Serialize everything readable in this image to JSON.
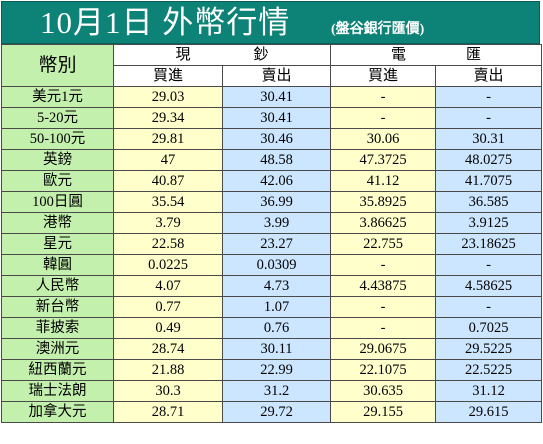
{
  "header": {
    "title": "10月1日 外幣行情",
    "subtitle": "(盤谷銀行匯價)"
  },
  "table": {
    "corner_label": "幣別",
    "cash_group": [
      "現",
      "鈔"
    ],
    "transfer_group": [
      "電",
      "匯"
    ],
    "sub_labels": {
      "cash_buy": "買進",
      "cash_sell": "賣出",
      "tt_buy": "買進",
      "tt_sell": "賣出"
    },
    "rows": [
      {
        "currency": "美元1元",
        "cash_buy": "29.03",
        "cash_sell": "30.41",
        "tt_buy": "-",
        "tt_sell": "-"
      },
      {
        "currency": "5-20元",
        "cash_buy": "29.34",
        "cash_sell": "30.41",
        "tt_buy": "-",
        "tt_sell": "-"
      },
      {
        "currency": "50-100元",
        "cash_buy": "29.81",
        "cash_sell": "30.46",
        "tt_buy": "30.06",
        "tt_sell": "30.31"
      },
      {
        "currency": "英鎊",
        "cash_buy": "47",
        "cash_sell": "48.58",
        "tt_buy": "47.3725",
        "tt_sell": "48.0275"
      },
      {
        "currency": "歐元",
        "cash_buy": "40.87",
        "cash_sell": "42.06",
        "tt_buy": "41.12",
        "tt_sell": "41.7075"
      },
      {
        "currency": "100日圓",
        "cash_buy": "35.54",
        "cash_sell": "36.99",
        "tt_buy": "35.8925",
        "tt_sell": "36.585"
      },
      {
        "currency": "港幣",
        "cash_buy": "3.79",
        "cash_sell": "3.99",
        "tt_buy": "3.86625",
        "tt_sell": "3.9125"
      },
      {
        "currency": "星元",
        "cash_buy": "22.58",
        "cash_sell": "23.27",
        "tt_buy": "22.755",
        "tt_sell": "23.18625"
      },
      {
        "currency": "韓圓",
        "cash_buy": "0.0225",
        "cash_sell": "0.0309",
        "tt_buy": "-",
        "tt_sell": "-"
      },
      {
        "currency": "人民幣",
        "cash_buy": "4.07",
        "cash_sell": "4.73",
        "tt_buy": "4.43875",
        "tt_sell": "4.58625"
      },
      {
        "currency": "新台幣",
        "cash_buy": "0.77",
        "cash_sell": "1.07",
        "tt_buy": "-",
        "tt_sell": "-"
      },
      {
        "currency": "菲披索",
        "cash_buy": "0.49",
        "cash_sell": "0.76",
        "tt_buy": "-",
        "tt_sell": "0.7025"
      },
      {
        "currency": "澳洲元",
        "cash_buy": "28.74",
        "cash_sell": "30.11",
        "tt_buy": "29.0675",
        "tt_sell": "29.5225"
      },
      {
        "currency": "紐西蘭元",
        "cash_buy": "21.88",
        "cash_sell": "22.99",
        "tt_buy": "22.1075",
        "tt_sell": "22.5225"
      },
      {
        "currency": "瑞士法朗",
        "cash_buy": "30.3",
        "cash_sell": "31.2",
        "tt_buy": "30.635",
        "tt_sell": "31.12"
      },
      {
        "currency": "加拿大元",
        "cash_buy": "28.71",
        "cash_sell": "29.72",
        "tt_buy": "29.155",
        "tt_sell": "29.615"
      }
    ]
  },
  "colors": {
    "header_bg": "#0d8276",
    "currency_col_bg": "#c4f0ae",
    "buy_col_bg": "#ffffcc",
    "sell_col_bg": "#cce6ff"
  }
}
